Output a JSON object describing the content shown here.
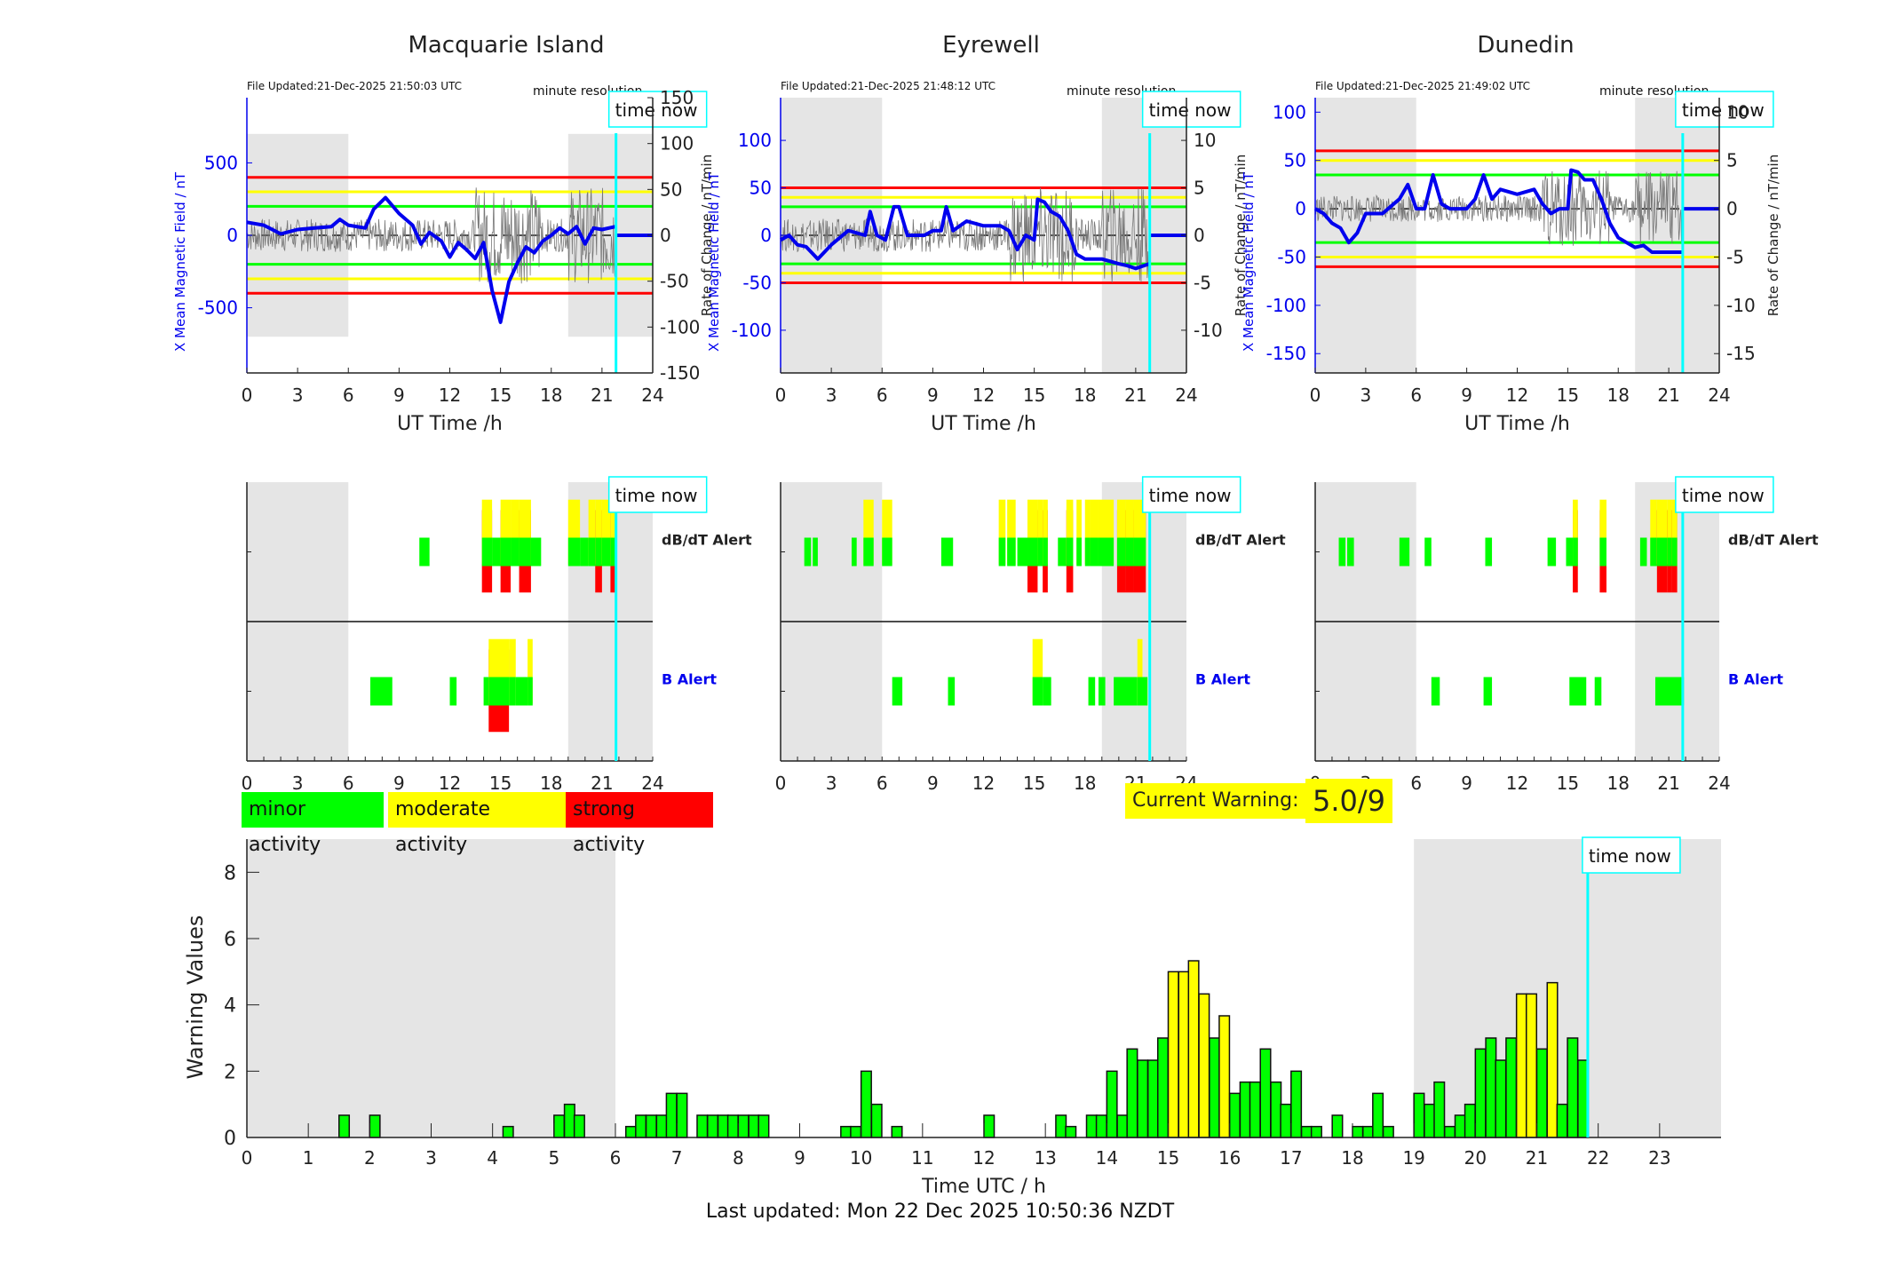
{
  "colors": {
    "minor": "#00ff00",
    "moderate": "#ffff00",
    "strong": "#ff0000",
    "field": "#0000ee",
    "now": "#00ffff",
    "night": "#e5e5e5"
  },
  "time_now_label": "time now",
  "time_now_hour": 21.83,
  "night_bands": [
    [
      0,
      6
    ],
    [
      19,
      24
    ]
  ],
  "stations": [
    {
      "name": "Macquarie Island",
      "file_updated": "File Updated:21-Dec-2025 21:50:03 UTC",
      "resolution_label": "minute resolution",
      "left_axis_label": "X Mean Magnetic Field / nT",
      "right_axis_label": "Rate of Change / nT/min",
      "left_ticks": [
        "500",
        "0",
        "-500"
      ],
      "left_tick_values": [
        500,
        0,
        -500
      ],
      "left_range": [
        -950,
        950
      ],
      "right_ticks": [
        "150",
        "100",
        "50",
        "0",
        "-50",
        "-100",
        "-150"
      ],
      "right_tick_values": [
        150,
        100,
        50,
        0,
        -50,
        -100,
        -150
      ],
      "right_range": [
        -150,
        150
      ],
      "thresholds": {
        "green": 200,
        "yellow": 300,
        "red": 400
      },
      "night_band_range": [
        -700,
        700
      ],
      "x_label": "UT Time /h",
      "x_ticks": [
        "0",
        "3",
        "6",
        "9",
        "12",
        "15",
        "18",
        "21",
        "24"
      ],
      "field_trace": [
        [
          0,
          90
        ],
        [
          1,
          70
        ],
        [
          2,
          10
        ],
        [
          3,
          40
        ],
        [
          4,
          50
        ],
        [
          5,
          60
        ],
        [
          5.5,
          110
        ],
        [
          6,
          70
        ],
        [
          7,
          50
        ],
        [
          7.5,
          180
        ],
        [
          8.2,
          260
        ],
        [
          9,
          150
        ],
        [
          9.8,
          70
        ],
        [
          10.3,
          -60
        ],
        [
          10.8,
          20
        ],
        [
          11.5,
          -40
        ],
        [
          12,
          -150
        ],
        [
          12.5,
          -50
        ],
        [
          13,
          -100
        ],
        [
          13.5,
          -160
        ],
        [
          14,
          -50
        ],
        [
          14.5,
          -380
        ],
        [
          15,
          -600
        ],
        [
          15.5,
          -320
        ],
        [
          16,
          -190
        ],
        [
          16.5,
          -80
        ],
        [
          17,
          -120
        ],
        [
          17.5,
          -40
        ],
        [
          18,
          0
        ],
        [
          18.5,
          50
        ],
        [
          19,
          10
        ],
        [
          19.5,
          60
        ],
        [
          20,
          -60
        ],
        [
          20.5,
          50
        ],
        [
          21,
          40
        ],
        [
          21.8,
          60
        ]
      ],
      "dbdt_alerts": [
        {
          "start": 10.2,
          "end": 10.8,
          "level": 1
        },
        {
          "start": 13.9,
          "end": 14.5,
          "level": 3
        },
        {
          "start": 14.5,
          "end": 15.0,
          "level": 1
        },
        {
          "start": 15.0,
          "end": 15.6,
          "level": 3
        },
        {
          "start": 15.6,
          "end": 16.1,
          "level": 2
        },
        {
          "start": 16.1,
          "end": 16.8,
          "level": 3
        },
        {
          "start": 16.8,
          "end": 17.4,
          "level": 1
        },
        {
          "start": 19.0,
          "end": 19.7,
          "level": 2
        },
        {
          "start": 19.7,
          "end": 20.2,
          "level": 1
        },
        {
          "start": 20.2,
          "end": 20.6,
          "level": 2
        },
        {
          "start": 20.6,
          "end": 21.0,
          "level": 3
        },
        {
          "start": 21.0,
          "end": 21.5,
          "level": 2
        },
        {
          "start": 21.5,
          "end": 21.8,
          "level": 3
        }
      ],
      "b_alerts": [
        {
          "start": 7.3,
          "end": 8.6,
          "level": 1
        },
        {
          "start": 12.0,
          "end": 12.4,
          "level": 1
        },
        {
          "start": 14.0,
          "end": 14.3,
          "level": 1
        },
        {
          "start": 14.3,
          "end": 15.5,
          "level": 3
        },
        {
          "start": 15.5,
          "end": 15.9,
          "level": 2
        },
        {
          "start": 15.9,
          "end": 16.6,
          "level": 1
        },
        {
          "start": 16.6,
          "end": 16.9,
          "level": 2
        }
      ]
    },
    {
      "name": "Eyrewell",
      "file_updated": "File Updated:21-Dec-2025 21:48:12 UTC",
      "resolution_label": "minute resolution",
      "left_axis_label": "X Mean Magnetic Field / nT",
      "right_axis_label": "Rate of Change / nT/min",
      "left_ticks": [
        "100",
        "50",
        "0",
        "-50",
        "-100"
      ],
      "left_tick_values": [
        100,
        50,
        0,
        -50,
        -100
      ],
      "left_range": [
        -145,
        145
      ],
      "right_ticks": [
        "10",
        "5",
        "0",
        "-5",
        "-10"
      ],
      "right_tick_values": [
        10,
        5,
        0,
        -5,
        -10
      ],
      "right_range": [
        -14.5,
        14.5
      ],
      "thresholds": {
        "green": 30,
        "yellow": 40,
        "red": 50
      },
      "night_band_range": [
        -145,
        145
      ],
      "x_label": "UT Time /h",
      "x_ticks": [
        "0",
        "3",
        "6",
        "9",
        "12",
        "15",
        "18",
        "21",
        "24"
      ],
      "field_trace": [
        [
          0,
          -5
        ],
        [
          0.5,
          0
        ],
        [
          1,
          -10
        ],
        [
          1.5,
          -12
        ],
        [
          2.2,
          -25
        ],
        [
          3,
          -10
        ],
        [
          4,
          5
        ],
        [
          5,
          0
        ],
        [
          5.3,
          25
        ],
        [
          5.7,
          0
        ],
        [
          6.2,
          -5
        ],
        [
          6.7,
          30
        ],
        [
          7,
          30
        ],
        [
          7.5,
          0
        ],
        [
          8.5,
          0
        ],
        [
          9,
          5
        ],
        [
          9.5,
          5
        ],
        [
          9.8,
          30
        ],
        [
          10.2,
          5
        ],
        [
          11,
          15
        ],
        [
          12,
          10
        ],
        [
          13,
          10
        ],
        [
          13.5,
          5
        ],
        [
          14,
          -15
        ],
        [
          14.5,
          0
        ],
        [
          15,
          -5
        ],
        [
          15.2,
          38
        ],
        [
          15.6,
          35
        ],
        [
          16,
          25
        ],
        [
          16.5,
          20
        ],
        [
          17,
          5
        ],
        [
          17.5,
          -20
        ],
        [
          18,
          -25
        ],
        [
          19,
          -25
        ],
        [
          20,
          -30
        ],
        [
          20.5,
          -32
        ],
        [
          21,
          -35
        ],
        [
          21.8,
          -30
        ]
      ],
      "dbdt_alerts": [
        {
          "start": 1.4,
          "end": 1.8,
          "level": 1
        },
        {
          "start": 1.9,
          "end": 2.2,
          "level": 1
        },
        {
          "start": 4.2,
          "end": 4.5,
          "level": 1
        },
        {
          "start": 4.9,
          "end": 5.5,
          "level": 2
        },
        {
          "start": 6.0,
          "end": 6.6,
          "level": 2
        },
        {
          "start": 9.5,
          "end": 10.2,
          "level": 1
        },
        {
          "start": 12.9,
          "end": 13.3,
          "level": 2
        },
        {
          "start": 13.4,
          "end": 13.9,
          "level": 2
        },
        {
          "start": 14.0,
          "end": 14.6,
          "level": 1
        },
        {
          "start": 14.6,
          "end": 15.2,
          "level": 3
        },
        {
          "start": 15.2,
          "end": 15.5,
          "level": 2
        },
        {
          "start": 15.5,
          "end": 15.8,
          "level": 3
        },
        {
          "start": 16.4,
          "end": 16.9,
          "level": 1
        },
        {
          "start": 16.9,
          "end": 17.3,
          "level": 3
        },
        {
          "start": 17.5,
          "end": 17.8,
          "level": 2
        },
        {
          "start": 18.0,
          "end": 18.3,
          "level": 2
        },
        {
          "start": 18.3,
          "end": 18.8,
          "level": 2
        },
        {
          "start": 18.8,
          "end": 19.7,
          "level": 2
        },
        {
          "start": 19.9,
          "end": 20.4,
          "level": 3
        },
        {
          "start": 20.4,
          "end": 20.9,
          "level": 3
        },
        {
          "start": 20.9,
          "end": 21.6,
          "level": 3
        }
      ],
      "b_alerts": [
        {
          "start": 6.6,
          "end": 7.2,
          "level": 1
        },
        {
          "start": 9.9,
          "end": 10.3,
          "level": 1
        },
        {
          "start": 14.9,
          "end": 15.5,
          "level": 2
        },
        {
          "start": 15.5,
          "end": 16.0,
          "level": 1
        },
        {
          "start": 18.2,
          "end": 18.6,
          "level": 1
        },
        {
          "start": 18.8,
          "end": 19.2,
          "level": 1
        },
        {
          "start": 19.7,
          "end": 21.1,
          "level": 1
        },
        {
          "start": 21.1,
          "end": 21.4,
          "level": 2
        },
        {
          "start": 21.4,
          "end": 21.7,
          "level": 1
        }
      ]
    },
    {
      "name": "Dunedin",
      "file_updated": "File Updated:21-Dec-2025 21:49:02 UTC",
      "resolution_label": "minute resolution",
      "left_axis_label": "X Mean Magnetic Field / nT",
      "right_axis_label": "Rate of Change / nT/min",
      "left_ticks": [
        "100",
        "50",
        "0",
        "-50",
        "-100",
        "-150"
      ],
      "left_tick_values": [
        100,
        50,
        0,
        -50,
        -100,
        -150
      ],
      "left_range": [
        -170,
        115
      ],
      "right_ticks": [
        "10",
        "5",
        "0",
        "-5",
        "-10",
        "-15"
      ],
      "right_tick_values": [
        10,
        5,
        0,
        -5,
        -10,
        -15
      ],
      "right_range": [
        -17,
        11.5
      ],
      "thresholds": {
        "green": 35,
        "yellow": 50,
        "red": 60
      },
      "night_band_range": [
        -170,
        115
      ],
      "x_label": "UT Time /h",
      "x_ticks": [
        "0",
        "3",
        "6",
        "9",
        "12",
        "15",
        "18",
        "21",
        "24"
      ],
      "field_trace": [
        [
          0,
          0
        ],
        [
          0.5,
          -5
        ],
        [
          1,
          -15
        ],
        [
          1.5,
          -20
        ],
        [
          2,
          -35
        ],
        [
          2.5,
          -25
        ],
        [
          3,
          -5
        ],
        [
          3.5,
          -5
        ],
        [
          4,
          -5
        ],
        [
          5,
          10
        ],
        [
          5.5,
          25
        ],
        [
          6,
          0
        ],
        [
          6.5,
          0
        ],
        [
          7,
          35
        ],
        [
          7.5,
          5
        ],
        [
          8,
          0
        ],
        [
          9,
          0
        ],
        [
          9.5,
          10
        ],
        [
          10,
          35
        ],
        [
          10.5,
          10
        ],
        [
          11,
          20
        ],
        [
          12,
          15
        ],
        [
          13,
          20
        ],
        [
          13.5,
          5
        ],
        [
          14,
          -5
        ],
        [
          14.5,
          0
        ],
        [
          15,
          0
        ],
        [
          15.2,
          40
        ],
        [
          15.6,
          38
        ],
        [
          16,
          30
        ],
        [
          16.5,
          30
        ],
        [
          17,
          10
        ],
        [
          17.5,
          -15
        ],
        [
          18,
          -30
        ],
        [
          18.5,
          -35
        ],
        [
          19,
          -40
        ],
        [
          19.5,
          -38
        ],
        [
          20,
          -45
        ],
        [
          20.5,
          -45
        ],
        [
          21,
          -45
        ],
        [
          21.8,
          -45
        ]
      ],
      "dbdt_alerts": [
        {
          "start": 1.4,
          "end": 1.8,
          "level": 1
        },
        {
          "start": 1.9,
          "end": 2.3,
          "level": 1
        },
        {
          "start": 5.0,
          "end": 5.6,
          "level": 1
        },
        {
          "start": 6.5,
          "end": 6.9,
          "level": 1
        },
        {
          "start": 10.1,
          "end": 10.5,
          "level": 1
        },
        {
          "start": 13.8,
          "end": 14.3,
          "level": 1
        },
        {
          "start": 14.9,
          "end": 15.3,
          "level": 1
        },
        {
          "start": 15.3,
          "end": 15.6,
          "level": 3
        },
        {
          "start": 16.9,
          "end": 17.3,
          "level": 3
        },
        {
          "start": 19.3,
          "end": 19.7,
          "level": 1
        },
        {
          "start": 19.9,
          "end": 20.3,
          "level": 2
        },
        {
          "start": 20.3,
          "end": 20.9,
          "level": 3
        },
        {
          "start": 20.9,
          "end": 21.2,
          "level": 3
        },
        {
          "start": 21.2,
          "end": 21.5,
          "level": 3
        }
      ],
      "b_alerts": [
        {
          "start": 6.9,
          "end": 7.4,
          "level": 1
        },
        {
          "start": 10.0,
          "end": 10.5,
          "level": 1
        },
        {
          "start": 15.1,
          "end": 16.1,
          "level": 1
        },
        {
          "start": 16.6,
          "end": 17.0,
          "level": 1
        },
        {
          "start": 20.2,
          "end": 21.9,
          "level": 1
        }
      ]
    }
  ],
  "alert_labels": {
    "dbdt": "dB/dT Alert",
    "b": "B Alert"
  },
  "alert_x_ticks": [
    "0",
    "3",
    "6",
    "9",
    "12",
    "15",
    "18",
    "21",
    "24"
  ],
  "legend": {
    "minor": "minor activity",
    "moderate": "moderate activity",
    "strong": "strong activity"
  },
  "current_warning": {
    "label": "Current Warning:",
    "value": "5.0/9"
  },
  "chart_data": {
    "type": "bar",
    "title": "",
    "xlabel": "Time UTC / h",
    "ylabel": "Warning Values",
    "xlim": [
      0,
      24
    ],
    "ylim": [
      0,
      9
    ],
    "x_ticks": [
      "0",
      "1",
      "2",
      "3",
      "4",
      "5",
      "6",
      "7",
      "8",
      "9",
      "10",
      "11",
      "12",
      "13",
      "14",
      "15",
      "16",
      "17",
      "18",
      "19",
      "20",
      "21",
      "22",
      "23"
    ],
    "y_ticks": [
      "0",
      "2",
      "4",
      "6",
      "8"
    ],
    "bin_hours": 0.1667,
    "moderate_threshold": 3.5,
    "x": [
      1.5,
      2.0,
      4.17,
      5.0,
      5.17,
      5.33,
      6.17,
      6.33,
      6.5,
      6.67,
      6.83,
      7.0,
      7.33,
      7.5,
      7.67,
      7.83,
      8.0,
      8.17,
      8.33,
      9.67,
      9.83,
      10.0,
      10.17,
      10.5,
      12.0,
      13.17,
      13.33,
      13.67,
      13.83,
      14.0,
      14.17,
      14.33,
      14.5,
      14.67,
      14.83,
      15.0,
      15.17,
      15.33,
      15.5,
      15.67,
      15.83,
      16.0,
      16.17,
      16.33,
      16.5,
      16.67,
      16.83,
      17.0,
      17.17,
      17.33,
      17.67,
      18.0,
      18.17,
      18.33,
      18.5,
      19.0,
      19.17,
      19.33,
      19.5,
      19.67,
      19.83,
      20.0,
      20.17,
      20.33,
      20.5,
      20.67,
      20.83,
      21.0,
      21.17,
      21.33,
      21.5,
      21.67
    ],
    "values": [
      0.67,
      0.67,
      0.33,
      0.67,
      1.0,
      0.67,
      0.33,
      0.67,
      0.67,
      0.67,
      1.33,
      1.33,
      0.67,
      0.67,
      0.67,
      0.67,
      0.67,
      0.67,
      0.67,
      0.33,
      0.33,
      2.0,
      1.0,
      0.33,
      0.67,
      0.67,
      0.33,
      0.67,
      0.67,
      2.0,
      0.67,
      2.67,
      2.33,
      2.33,
      3.0,
      5.0,
      5.0,
      5.33,
      4.33,
      3.0,
      3.67,
      1.33,
      1.67,
      1.67,
      2.67,
      1.67,
      1.0,
      2.0,
      0.33,
      0.33,
      0.67,
      0.33,
      0.33,
      1.33,
      0.33,
      1.33,
      1.0,
      1.67,
      0.33,
      0.67,
      1.0,
      2.67,
      3.0,
      2.33,
      3.0,
      4.33,
      4.33,
      2.67,
      4.67,
      1.0,
      3.0,
      2.33
    ],
    "night_bands": [
      [
        0,
        6
      ],
      [
        19,
        24
      ]
    ],
    "time_now": 21.83,
    "time_now_label": "time now",
    "grid": false,
    "legend": "none"
  },
  "footer": "Last updated: Mon 22 Dec 2025 10:50:36 NZDT"
}
